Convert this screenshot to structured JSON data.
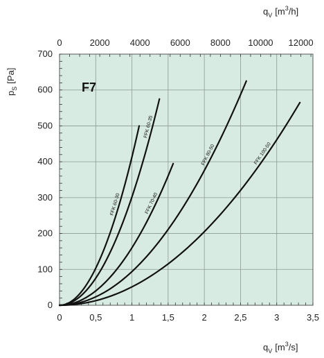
{
  "chart_data": {
    "type": "line",
    "panel_label": "F7",
    "colors": {
      "plot_background": "#d8ebe2",
      "grid": "#8a9a90",
      "curve": "#111111"
    },
    "grid": true,
    "x_bottom": {
      "label_main": "q",
      "label_sub": "V",
      "label_open": "[m",
      "label_sup": "3",
      "label_close": "/s]",
      "range": [
        0,
        3.5
      ],
      "ticks": [
        0,
        0.5,
        1,
        1.5,
        2,
        2.5,
        3,
        3.5
      ],
      "tick_labels": [
        "0",
        "0,5",
        "1",
        "1,5",
        "2",
        "2,5",
        "3",
        "3,5"
      ]
    },
    "x_top": {
      "label_main": "q",
      "label_sub": "V",
      "label_open": "[m",
      "label_sup": "3",
      "label_close": "/h]",
      "range": [
        0,
        12600
      ],
      "ticks": [
        0,
        2000,
        4000,
        6000,
        8000,
        10000,
        12000
      ],
      "tick_labels": [
        "0",
        "2000",
        "4000",
        "6000",
        "8000",
        "10000",
        "12000"
      ]
    },
    "y": {
      "label_main": "p",
      "label_sub": "S",
      "label_unit": "[Pa]",
      "range": [
        0,
        700
      ],
      "ticks": [
        0,
        100,
        200,
        300,
        400,
        500,
        600,
        700
      ],
      "tick_labels": [
        "0",
        "100",
        "200",
        "300",
        "400",
        "500",
        "600",
        "700"
      ]
    },
    "series": [
      {
        "name": "FFK 60-30",
        "x_end": 1.1,
        "y_end": 500,
        "label_at": 0.82
      },
      {
        "name": "FFK 60-35",
        "x_end": 1.38,
        "y_end": 575,
        "label_at": 1.28
      },
      {
        "name": "FFK 70-40",
        "x_end": 1.57,
        "y_end": 395,
        "label_at": 1.32
      },
      {
        "name": "FFK 80-50",
        "x_end": 2.58,
        "y_end": 625,
        "label_at": 2.1
      },
      {
        "name": "FFK 100-50",
        "x_end": 3.32,
        "y_end": 565,
        "label_at": 2.85
      }
    ]
  }
}
